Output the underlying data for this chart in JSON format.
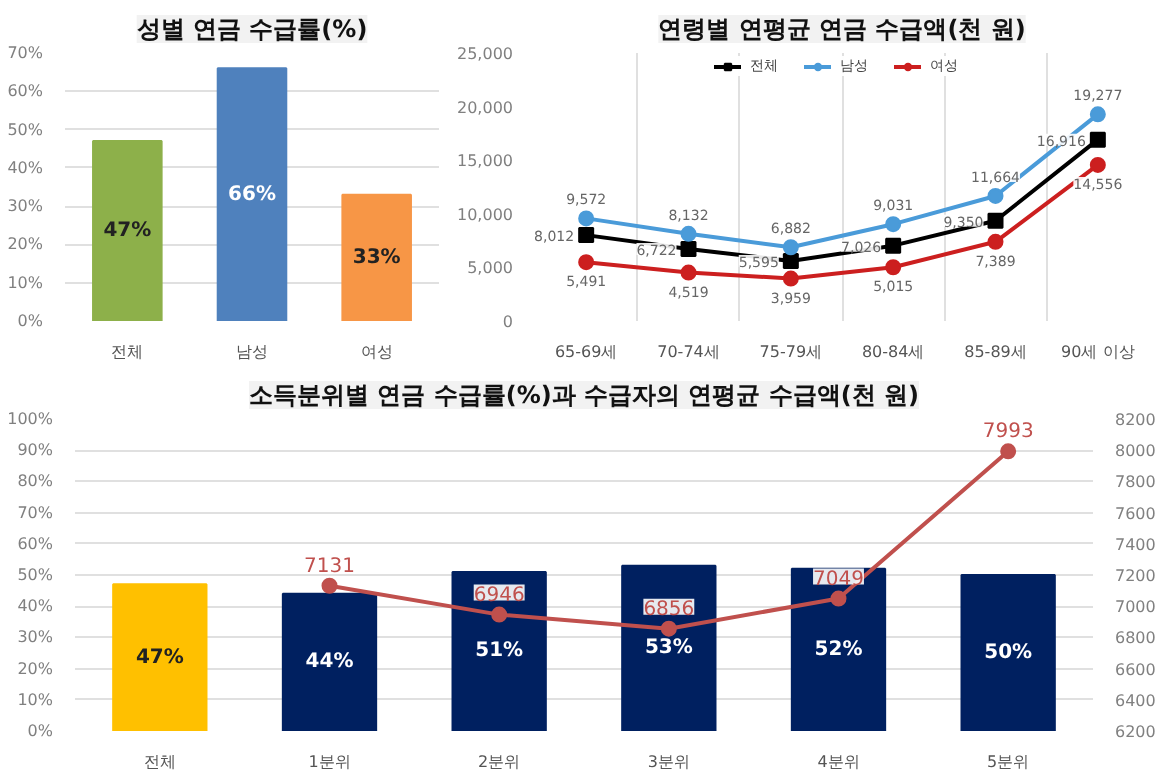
{
  "chart_data": [
    {
      "type": "bar",
      "title": "성별 연금 수급률(%)",
      "categories": [
        "전체",
        "남성",
        "여성"
      ],
      "ylim": [
        0,
        70
      ],
      "yticks": [
        {
          "value": 0,
          "label": "0%"
        },
        {
          "value": 10,
          "label": "10%"
        },
        {
          "value": 20,
          "label": "20%"
        },
        {
          "value": 30,
          "label": "30%"
        },
        {
          "value": 40,
          "label": "40%"
        },
        {
          "value": 50,
          "label": "50%"
        },
        {
          "value": 60,
          "label": "60%"
        },
        {
          "value": 70,
          "label": "70%"
        }
      ],
      "grid": "y",
      "series": [
        {
          "colors": [
            "#8db04a",
            "#4f81bd",
            "#f79646"
          ],
          "values": [
            47,
            66,
            33
          ],
          "value_labels": [
            "47%",
            "66%",
            "33%"
          ]
        }
      ]
    },
    {
      "type": "line",
      "title": "연령별 연평균 연금 수급액(천 원)",
      "categories": [
        "65-69세",
        "70-74세",
        "75-79세",
        "80-84세",
        "85-89세",
        "90세 이상"
      ],
      "ylim": [
        0,
        25000
      ],
      "yticks": [
        {
          "value": 0,
          "label": "0"
        },
        {
          "value": 5000,
          "label": "5,000"
        },
        {
          "value": 10000,
          "label": "10,000"
        },
        {
          "value": 15000,
          "label": "15,000"
        },
        {
          "value": 20000,
          "label": "20,000"
        },
        {
          "value": 25000,
          "label": "25,000"
        }
      ],
      "grid": "x",
      "legend": "top",
      "series": [
        {
          "name": "전체",
          "color": "#000000",
          "marker": "square",
          "values": [
            8012,
            6722,
            5595,
            7026,
            9350,
            16916
          ],
          "value_labels": [
            "8,012",
            "6,722",
            "5,595",
            "7,026",
            "9,350",
            "16,916"
          ]
        },
        {
          "name": "남성",
          "color": "#4a9bd9",
          "marker": "circle",
          "values": [
            9572,
            8132,
            6882,
            9031,
            11664,
            19277
          ],
          "value_labels": [
            "9,572",
            "8,132",
            "6,882",
            "9,031",
            "11,664",
            "19,277"
          ]
        },
        {
          "name": "여성",
          "color": "#cc1f1f",
          "marker": "circle",
          "values": [
            5491,
            4519,
            3959,
            5015,
            7389,
            14556
          ],
          "value_labels": [
            "5,491",
            "4,519",
            "3,959",
            "5,015",
            "7,389",
            "14,556"
          ]
        }
      ]
    },
    {
      "type": "bar",
      "title": "소득분위별 연금 수급률(%)과 수급자의 연평균 수급액(천 원)",
      "categories": [
        "전체",
        "1분위",
        "2분위",
        "3분위",
        "4분위",
        "5분위"
      ],
      "ylim": [
        0,
        100
      ],
      "yticks": [
        {
          "value": 0,
          "label": "0%"
        },
        {
          "value": 10,
          "label": "10%"
        },
        {
          "value": 20,
          "label": "20%"
        },
        {
          "value": 30,
          "label": "30%"
        },
        {
          "value": 40,
          "label": "40%"
        },
        {
          "value": 50,
          "label": "50%"
        },
        {
          "value": 60,
          "label": "60%"
        },
        {
          "value": 70,
          "label": "70%"
        },
        {
          "value": 80,
          "label": "80%"
        },
        {
          "value": 90,
          "label": "90%"
        },
        {
          "value": 100,
          "label": "100%"
        }
      ],
      "y2lim": [
        6200,
        8200
      ],
      "y2ticks": [
        6200,
        6400,
        6600,
        6800,
        7000,
        7200,
        7400,
        7600,
        7800,
        8000,
        8200
      ],
      "grid": "y",
      "series": [
        {
          "type": "bar",
          "colors": [
            "#ffc000",
            "#002060",
            "#002060",
            "#002060",
            "#002060",
            "#002060"
          ],
          "values": [
            47,
            44,
            51,
            53,
            52,
            50
          ],
          "value_labels": [
            "47%",
            "44%",
            "51%",
            "53%",
            "52%",
            "50%"
          ]
        },
        {
          "type": "line",
          "axis": "y2",
          "color": "#c0504d",
          "marker": "circle",
          "values": [
            null,
            7131,
            6946,
            6856,
            7049,
            7993
          ],
          "value_labels": [
            null,
            "7131",
            "6946",
            "6856",
            "7049",
            "7993"
          ]
        }
      ]
    }
  ]
}
